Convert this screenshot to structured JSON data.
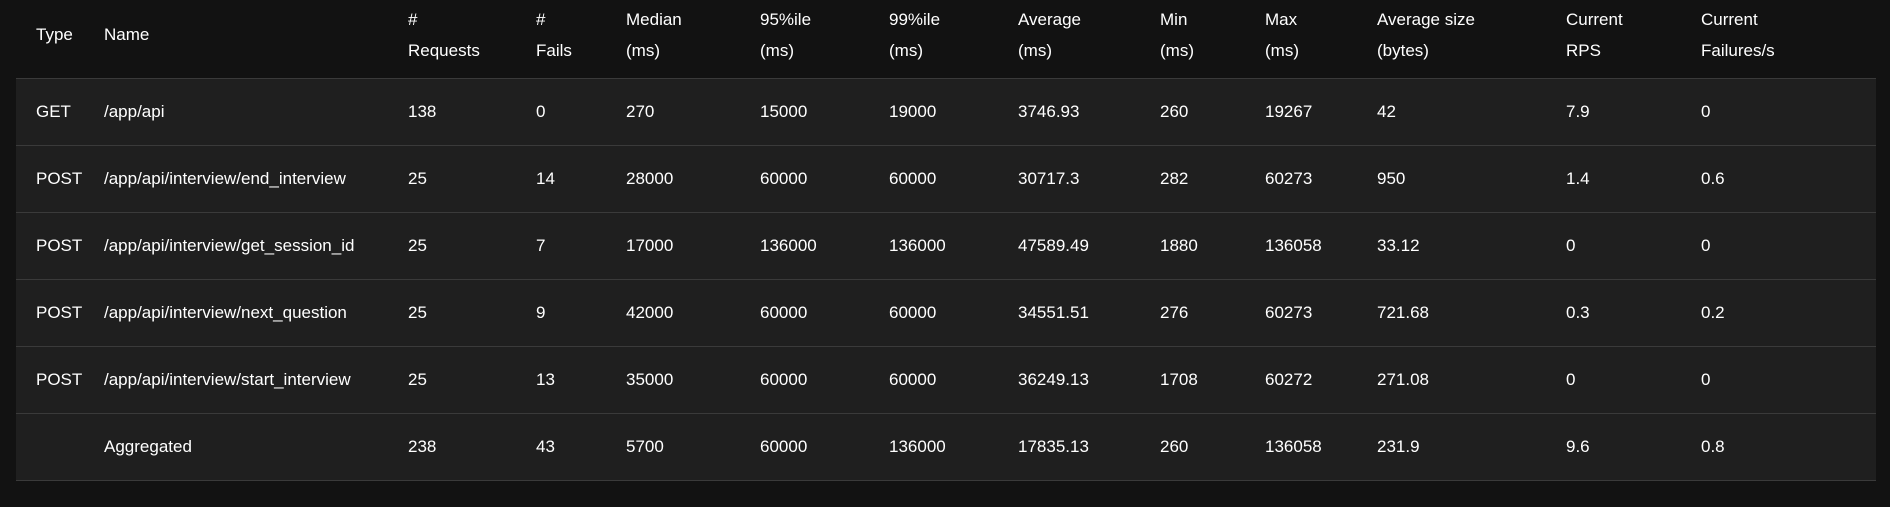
{
  "columns": [
    {
      "line1": "Type",
      "line2": ""
    },
    {
      "line1": "Name",
      "line2": ""
    },
    {
      "line1": "#",
      "line2": "Requests"
    },
    {
      "line1": "#",
      "line2": "Fails"
    },
    {
      "line1": "Median",
      "line2": "(ms)"
    },
    {
      "line1": "95%ile",
      "line2": "(ms)"
    },
    {
      "line1": "99%ile",
      "line2": "(ms)"
    },
    {
      "line1": "Average",
      "line2": "(ms)"
    },
    {
      "line1": "Min",
      "line2": "(ms)"
    },
    {
      "line1": "Max",
      "line2": "(ms)"
    },
    {
      "line1": "Average size",
      "line2": "(bytes)"
    },
    {
      "line1": "Current",
      "line2": "RPS"
    },
    {
      "line1": "Current",
      "line2": "Failures/s"
    }
  ],
  "rows": [
    {
      "type": "GET",
      "name": "/app/api",
      "requests": "138",
      "fails": "0",
      "median": "270",
      "p95": "15000",
      "p99": "19000",
      "average": "3746.93",
      "min": "260",
      "max": "19267",
      "avg_size": "42",
      "rps": "7.9",
      "failures_s": "0"
    },
    {
      "type": "POST",
      "name": "/app/api/interview/end_interview",
      "requests": "25",
      "fails": "14",
      "median": "28000",
      "p95": "60000",
      "p99": "60000",
      "average": "30717.3",
      "min": "282",
      "max": "60273",
      "avg_size": "950",
      "rps": "1.4",
      "failures_s": "0.6"
    },
    {
      "type": "POST",
      "name": "/app/api/interview/get_session_id",
      "requests": "25",
      "fails": "7",
      "median": "17000",
      "p95": "136000",
      "p99": "136000",
      "average": "47589.49",
      "min": "1880",
      "max": "136058",
      "avg_size": "33.12",
      "rps": "0",
      "failures_s": "0"
    },
    {
      "type": "POST",
      "name": "/app/api/interview/next_question",
      "requests": "25",
      "fails": "9",
      "median": "42000",
      "p95": "60000",
      "p99": "60000",
      "average": "34551.51",
      "min": "276",
      "max": "60273",
      "avg_size": "721.68",
      "rps": "0.3",
      "failures_s": "0.2"
    },
    {
      "type": "POST",
      "name": "/app/api/interview/start_interview",
      "requests": "25",
      "fails": "13",
      "median": "35000",
      "p95": "60000",
      "p99": "60000",
      "average": "36249.13",
      "min": "1708",
      "max": "60272",
      "avg_size": "271.08",
      "rps": "0",
      "failures_s": "0"
    }
  ],
  "aggregated": {
    "type": "",
    "name": "Aggregated",
    "requests": "238",
    "fails": "43",
    "median": "5700",
    "p95": "60000",
    "p99": "136000",
    "average": "17835.13",
    "min": "260",
    "max": "136058",
    "avg_size": "231.9",
    "rps": "9.6",
    "failures_s": "0.8"
  },
  "colors": {
    "background": "#121212",
    "row_bg": "#1f1f1f",
    "border": "#3a3a3a",
    "text": "#ffffff"
  }
}
